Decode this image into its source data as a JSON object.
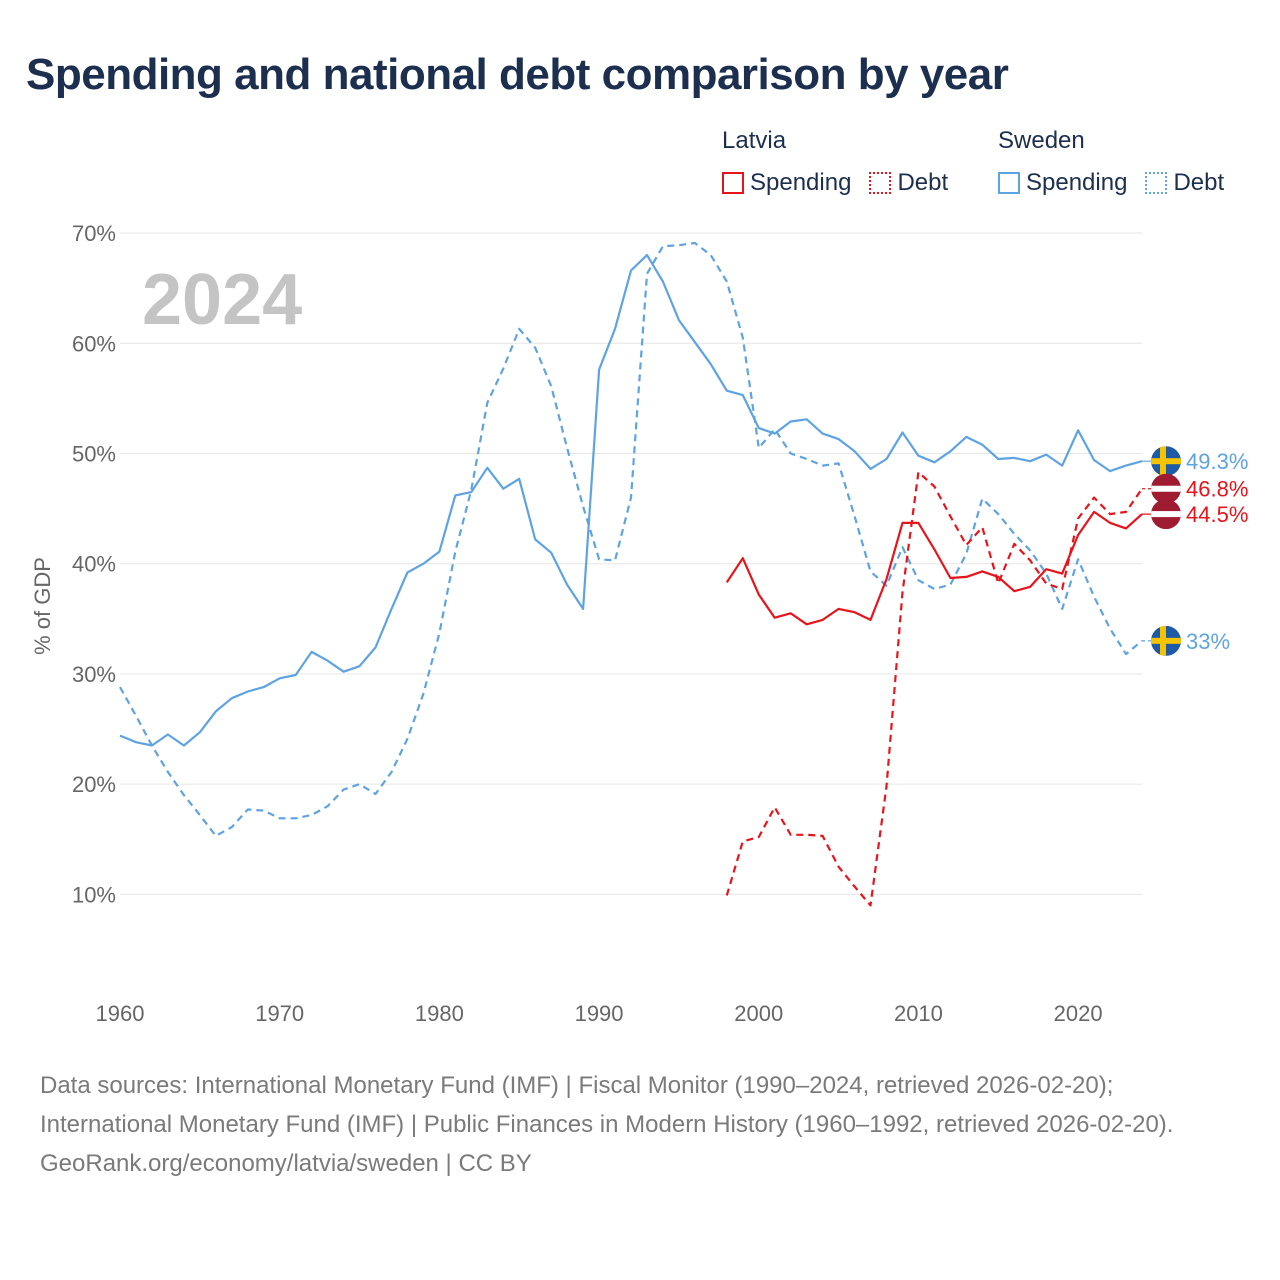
{
  "title": "Spending and national debt comparison by year",
  "legend": {
    "groups": [
      {
        "name": "Latvia",
        "color": "#e8141c",
        "items": [
          {
            "label": "Spending",
            "style": "solid"
          },
          {
            "label": "Debt",
            "style": "dotted"
          }
        ]
      },
      {
        "name": "Sweden",
        "color": "#5ea3e2",
        "items": [
          {
            "label": "Spending",
            "style": "solid"
          },
          {
            "label": "Debt",
            "style": "dotted"
          }
        ]
      }
    ]
  },
  "chart_data": {
    "type": "line",
    "year_label": "2024",
    "ylabel": "% of GDP",
    "xlabel": "",
    "xlim": [
      1960,
      2024
    ],
    "ylim": [
      2.5,
      72
    ],
    "x_ticks": [
      "1960",
      "1970",
      "1980",
      "1990",
      "2000",
      "2010",
      "2020"
    ],
    "y_ticks": [
      {
        "value": 10,
        "label": "10%"
      },
      {
        "value": 20,
        "label": "20%"
      },
      {
        "value": 30,
        "label": "30%"
      },
      {
        "value": 40,
        "label": "40%"
      },
      {
        "value": 50,
        "label": "50%"
      },
      {
        "value": 60,
        "label": "60%"
      },
      {
        "value": 70,
        "label": "70%"
      }
    ],
    "series": [
      {
        "name": "Sweden Spending",
        "country": "Sweden",
        "measure": "Spending",
        "color": "#5ea3e2",
        "dash": "solid",
        "start_year": 1960,
        "values": [
          24.4,
          23.8,
          23.5,
          24.5,
          23.5,
          24.7,
          26.6,
          27.8,
          28.4,
          28.8,
          29.6,
          29.9,
          32.0,
          31.2,
          30.2,
          30.7,
          32.4,
          35.9,
          39.2,
          40.0,
          41.1,
          46.2,
          46.5,
          48.7,
          46.8,
          47.7,
          42.2,
          41.0,
          38.1,
          35.9,
          57.6,
          61.3,
          66.6,
          68.0,
          65.6,
          62.1,
          60.1,
          58.1,
          55.7,
          55.3,
          52.3,
          51.8,
          52.9,
          53.1,
          51.8,
          51.3,
          50.2,
          48.6,
          49.5,
          51.9,
          49.8,
          49.2,
          50.2,
          51.5,
          50.8,
          49.5,
          49.6,
          49.3,
          49.9,
          48.9,
          52.1,
          49.4,
          48.4,
          48.9,
          49.3
        ],
        "end_label": "49.3%"
      },
      {
        "name": "Sweden Debt",
        "country": "Sweden",
        "measure": "Debt",
        "color": "#5ea3e2",
        "dash": "dashed",
        "start_year": 1960,
        "values": [
          28.8,
          26.2,
          23.5,
          21.1,
          19.0,
          17.2,
          15.3,
          16.1,
          17.7,
          17.6,
          16.9,
          16.9,
          17.2,
          18.0,
          19.5,
          20.0,
          19.1,
          21.1,
          24.1,
          28.2,
          33.7,
          41.1,
          46.7,
          54.6,
          57.7,
          61.3,
          59.6,
          56.1,
          50.5,
          45.2,
          40.4,
          40.3,
          46.0,
          66.3,
          68.8,
          68.9,
          69.1,
          68.0,
          65.6,
          60.5,
          50.5,
          52.2,
          50.0,
          49.5,
          48.9,
          49.1,
          44.3,
          39.3,
          38.0,
          41.5,
          38.5,
          37.7,
          38.1,
          40.9,
          45.9,
          44.5,
          42.7,
          41.2,
          39.1,
          35.9,
          40.4,
          37.0,
          34.1,
          31.8,
          33.0
        ],
        "end_label": "33%"
      },
      {
        "name": "Latvia Spending",
        "country": "Latvia",
        "measure": "Spending",
        "color": "#e8141c",
        "dash": "solid",
        "start_year": 1998,
        "values": [
          38.3,
          40.5,
          37.2,
          35.1,
          35.5,
          34.5,
          34.9,
          35.9,
          35.6,
          34.9,
          38.6,
          43.7,
          43.7,
          41.3,
          38.7,
          38.8,
          39.3,
          38.8,
          37.5,
          37.9,
          39.5,
          39.1,
          42.6,
          44.7,
          43.7,
          43.2,
          44.5
        ],
        "end_label": "44.5%"
      },
      {
        "name": "Latvia Debt",
        "country": "Latvia",
        "measure": "Debt",
        "color": "#e8141c",
        "dash": "dashed",
        "start_year": 1998,
        "values": [
          9.9,
          14.8,
          15.2,
          17.9,
          15.4,
          15.4,
          15.3,
          12.5,
          10.7,
          9.0,
          19.8,
          37.4,
          48.3,
          47.0,
          44.3,
          41.7,
          43.3,
          38.2,
          41.8,
          40.3,
          38.2,
          37.7,
          44.1,
          46.0,
          44.5,
          44.7,
          46.8
        ],
        "end_label": "46.8%"
      }
    ]
  },
  "sources": [
    "Data sources: International Monetary Fund (IMF) | Fiscal Monitor (1990–2024, retrieved 2026-02-20); International Monetary Fund (IMF) | Public Finances in Modern History (1960–1992, retrieved 2026-02-20).",
    "GeoRank.org/economy/latvia/sweden | CC BY"
  ]
}
